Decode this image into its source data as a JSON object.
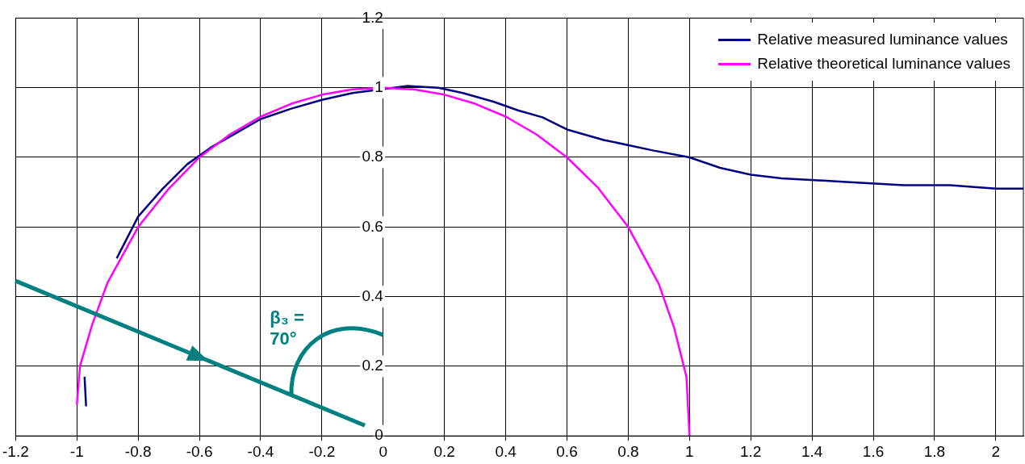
{
  "chart_data": {
    "type": "line",
    "xlim": [
      -1.2,
      2.09
    ],
    "xticks": [
      -1.2,
      -1,
      -0.8,
      -0.6,
      -0.4,
      -0.2,
      0,
      0.2,
      0.4,
      0.6,
      0.8,
      1,
      1.2,
      1.4,
      1.6,
      1.8,
      2
    ],
    "ylim": [
      0,
      1.2
    ],
    "yticks": [
      0,
      0.2,
      0.4,
      0.6,
      0.8,
      1,
      1.2
    ],
    "grid": true,
    "legend": "top right",
    "marker": "none",
    "line_style": "solid",
    "annotations": [
      "β₃ = 70°"
    ],
    "series": [
      {
        "name": "Relative measured luminance values",
        "color": "#000080",
        "x": [
          -0.975,
          -0.97,
          -0.9,
          -0.87,
          -0.8,
          -0.72,
          -0.64,
          -0.56,
          -0.48,
          -0.4,
          -0.3,
          -0.2,
          -0.1,
          0.08,
          0.18,
          0.26,
          0.36,
          0.44,
          0.52,
          0.6,
          0.72,
          0.88,
          1,
          1.05,
          1.1,
          1.2,
          1.3,
          1.5,
          1.7,
          1.85,
          2,
          2.09
        ],
        "values": [
          0.17,
          0.085,
          null,
          0.51,
          0.63,
          0.71,
          0.78,
          0.83,
          0.87,
          0.91,
          0.94,
          0.965,
          0.985,
          1.005,
          1,
          0.985,
          0.96,
          0.935,
          0.915,
          0.88,
          0.85,
          0.82,
          0.8,
          0.785,
          0.77,
          0.75,
          0.74,
          0.73,
          0.72,
          0.72,
          0.71,
          0.71
        ]
      },
      {
        "name": "Relative theoretical luminance values",
        "color": "#ff00ff",
        "x": [
          -1,
          -0.99,
          -0.95,
          -0.9,
          -0.8,
          -0.7,
          -0.6,
          -0.5,
          -0.4,
          -0.3,
          -0.2,
          -0.1,
          0,
          0.1,
          0.2,
          0.3,
          0.4,
          0.5,
          0.6,
          0.7,
          0.8,
          0.9,
          0.95,
          0.99,
          1
        ],
        "values": [
          0.09,
          0.2,
          0.32,
          0.44,
          0.6,
          0.71,
          0.8,
          0.866,
          0.917,
          0.954,
          0.98,
          0.995,
          1,
          0.995,
          0.98,
          0.954,
          0.917,
          0.866,
          0.8,
          0.714,
          0.6,
          0.436,
          0.31,
          0.17,
          0
        ]
      }
    ]
  }
}
